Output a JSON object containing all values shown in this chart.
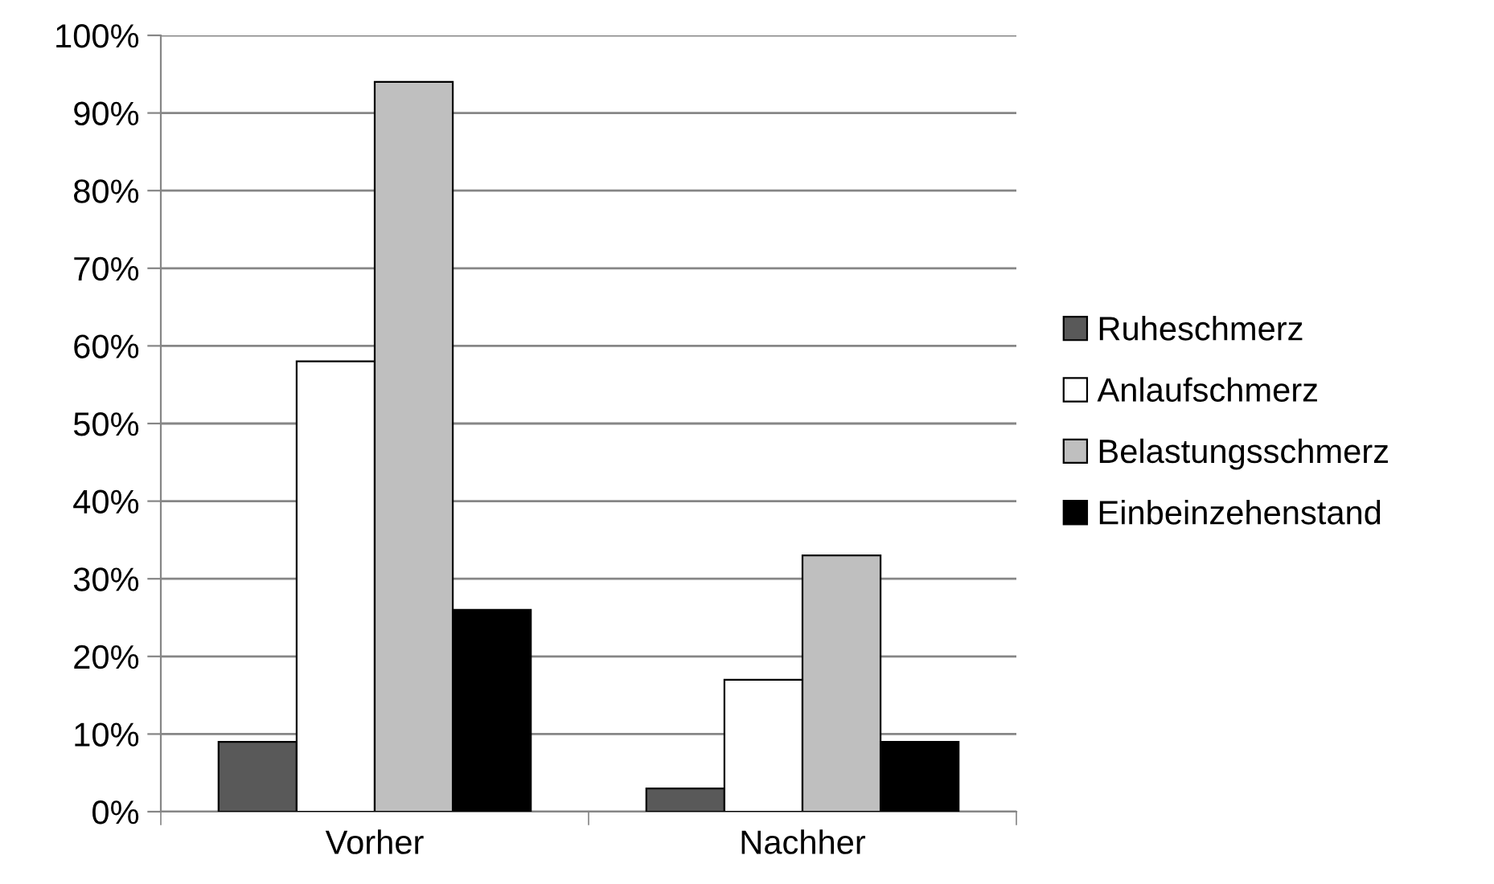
{
  "chart_data": {
    "type": "bar",
    "categories": [
      "Vorher",
      "Nachher"
    ],
    "series": [
      {
        "name": "Ruheschmerz",
        "color": "#595959",
        "values": [
          9,
          3
        ]
      },
      {
        "name": "Anlaufschmerz",
        "color": "#ffffff",
        "values": [
          58,
          17
        ]
      },
      {
        "name": "Belastungsschmerz",
        "color": "#bfbfbf",
        "values": [
          94,
          33
        ]
      },
      {
        "name": "Einbeinzehenstand",
        "color": "#000000",
        "values": [
          26,
          9
        ]
      }
    ],
    "ylim": [
      0,
      100
    ],
    "yticks": [
      {
        "value": 0,
        "label": "0%"
      },
      {
        "value": 10,
        "label": "10%"
      },
      {
        "value": 20,
        "label": "20%"
      },
      {
        "value": 30,
        "label": "30%"
      },
      {
        "value": 40,
        "label": "40%"
      },
      {
        "value": 50,
        "label": "50%"
      },
      {
        "value": 60,
        "label": "60%"
      },
      {
        "value": 70,
        "label": "70%"
      },
      {
        "value": 80,
        "label": "80%"
      },
      {
        "value": 90,
        "label": "90%"
      },
      {
        "value": 100,
        "label": "100%"
      }
    ],
    "grid": "y",
    "legend": "right"
  }
}
